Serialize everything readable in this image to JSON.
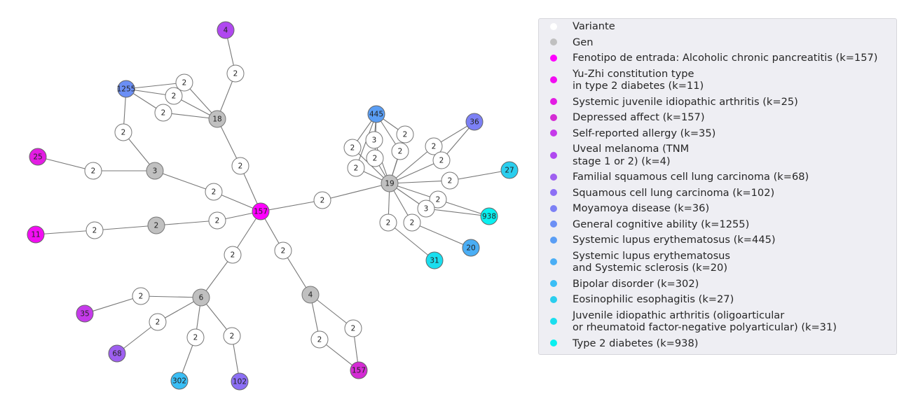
{
  "legend": [
    {
      "label": "Variante",
      "color": "#ffffff"
    },
    {
      "label": "Gen",
      "color": "#c0c0c0"
    },
    {
      "label": "Fenotipo de entrada: Alcoholic chronic pancreatitis (k=157)",
      "color": "#ff00ff"
    },
    {
      "label": "Yu-Zhi constitution type\nin type 2 diabetes (k=11)",
      "color": "#f20df2"
    },
    {
      "label": "Systemic juvenile idiopathic arthritis (k=25)",
      "color": "#e31ce3"
    },
    {
      "label": "Depressed affect (k=157)",
      "color": "#d42bd4"
    },
    {
      "label": "Self-reported allergy (k=35)",
      "color": "#c53aea"
    },
    {
      "label": "Uveal melanoma (TNM\nstage 1 or 2) (k=4)",
      "color": "#b048f0"
    },
    {
      "label": "Familial squamous cell lung carcinoma (k=68)",
      "color": "#9e5ff0"
    },
    {
      "label": "Squamous cell lung carcinoma (k=102)",
      "color": "#8c6ff5"
    },
    {
      "label": "Moyamoya disease (k=36)",
      "color": "#7c80f5"
    },
    {
      "label": "General cognitive ability (k=1255)",
      "color": "#6b8ff5"
    },
    {
      "label": "Systemic lupus erythematosus (k=445)",
      "color": "#5a9ef5"
    },
    {
      "label": "Systemic lupus erythematosus\nand Systemic sclerosis (k=20)",
      "color": "#4aaef5"
    },
    {
      "label": "Bipolar disorder (k=302)",
      "color": "#3abef5"
    },
    {
      "label": "Eosinophilic esophagitis (k=27)",
      "color": "#2aceee"
    },
    {
      "label": "Juvenile idiopathic arthritis (oligoarticular\nor rheumatoid factor-negative polyarticular) (k=31)",
      "color": "#1adeee"
    },
    {
      "label": "Type 2 diabetes (k=938)",
      "color": "#0af0f0"
    }
  ],
  "nodes": [
    {
      "id": "center",
      "label": "157",
      "kind": "phenotype",
      "color": "#ff00ff"
    },
    {
      "id": "p4",
      "label": "4",
      "kind": "phenotype",
      "color": "#b048f0"
    },
    {
      "id": "v_p4",
      "label": "2",
      "kind": "variant"
    },
    {
      "id": "g18",
      "label": "18",
      "kind": "gene"
    },
    {
      "id": "p1255",
      "label": "1255",
      "kind": "phenotype",
      "color": "#6b8ff5"
    },
    {
      "id": "v18a",
      "label": "2",
      "kind": "variant"
    },
    {
      "id": "v18b",
      "label": "2",
      "kind": "variant"
    },
    {
      "id": "v18c",
      "label": "2",
      "kind": "variant"
    },
    {
      "id": "v_1255",
      "label": "2",
      "kind": "variant"
    },
    {
      "id": "v_18c",
      "label": "2",
      "kind": "variant"
    },
    {
      "id": "g3",
      "label": "3",
      "kind": "gene"
    },
    {
      "id": "p25",
      "label": "25",
      "kind": "phenotype",
      "color": "#e31ce3"
    },
    {
      "id": "v_25",
      "label": "2",
      "kind": "variant"
    },
    {
      "id": "v_3c",
      "label": "2",
      "kind": "variant"
    },
    {
      "id": "g2",
      "label": "2",
      "kind": "gene"
    },
    {
      "id": "p11",
      "label": "11",
      "kind": "phenotype",
      "color": "#f20df2"
    },
    {
      "id": "v_11",
      "label": "2",
      "kind": "variant"
    },
    {
      "id": "v_2c",
      "label": "2",
      "kind": "variant"
    },
    {
      "id": "g6",
      "label": "6",
      "kind": "gene"
    },
    {
      "id": "v_6c",
      "label": "2",
      "kind": "variant"
    },
    {
      "id": "p35",
      "label": "35",
      "kind": "phenotype",
      "color": "#c53aea"
    },
    {
      "id": "v_35",
      "label": "2",
      "kind": "variant"
    },
    {
      "id": "p68",
      "label": "68",
      "kind": "phenotype",
      "color": "#9e5ff0"
    },
    {
      "id": "v_68",
      "label": "2",
      "kind": "variant"
    },
    {
      "id": "p302",
      "label": "302",
      "kind": "phenotype",
      "color": "#3abef5"
    },
    {
      "id": "v_302",
      "label": "2",
      "kind": "variant"
    },
    {
      "id": "p102",
      "label": "102",
      "kind": "phenotype",
      "color": "#8c6ff5"
    },
    {
      "id": "v_102",
      "label": "2",
      "kind": "variant"
    },
    {
      "id": "g4",
      "label": "4",
      "kind": "gene"
    },
    {
      "id": "v_4c",
      "label": "2",
      "kind": "variant"
    },
    {
      "id": "v_4a",
      "label": "2",
      "kind": "variant"
    },
    {
      "id": "v_4b",
      "label": "2",
      "kind": "variant"
    },
    {
      "id": "p157b",
      "label": "157",
      "kind": "phenotype",
      "color": "#d42bd4"
    },
    {
      "id": "g19",
      "label": "19",
      "kind": "gene"
    },
    {
      "id": "v_19c",
      "label": "2",
      "kind": "variant"
    },
    {
      "id": "p445",
      "label": "445",
      "kind": "phenotype",
      "color": "#5a9ef5"
    },
    {
      "id": "v445a",
      "label": "2",
      "kind": "variant"
    },
    {
      "id": "v445b",
      "label": "3",
      "kind": "variant"
    },
    {
      "id": "v445c",
      "label": "2",
      "kind": "variant"
    },
    {
      "id": "v445d",
      "label": "2",
      "kind": "variant"
    },
    {
      "id": "v445e",
      "label": "2",
      "kind": "variant"
    },
    {
      "id": "v445f",
      "label": "2",
      "kind": "variant"
    },
    {
      "id": "p36",
      "label": "36",
      "kind": "phenotype",
      "color": "#7c80f5"
    },
    {
      "id": "v36a",
      "label": "2",
      "kind": "variant"
    },
    {
      "id": "v36b",
      "label": "2",
      "kind": "variant"
    },
    {
      "id": "p27",
      "label": "27",
      "kind": "phenotype",
      "color": "#2aceee"
    },
    {
      "id": "v_27",
      "label": "2",
      "kind": "variant"
    },
    {
      "id": "p938",
      "label": "938",
      "kind": "phenotype",
      "color": "#0af0f0"
    },
    {
      "id": "v938a",
      "label": "2",
      "kind": "variant"
    },
    {
      "id": "v938b",
      "label": "3",
      "kind": "variant"
    },
    {
      "id": "p20",
      "label": "20",
      "kind": "phenotype",
      "color": "#4aaef5"
    },
    {
      "id": "v_20",
      "label": "2",
      "kind": "variant"
    },
    {
      "id": "p31",
      "label": "31",
      "kind": "phenotype",
      "color": "#1adeee"
    },
    {
      "id": "v_31",
      "label": "2",
      "kind": "variant"
    }
  ],
  "edges": [
    [
      "p4",
      "v_p4"
    ],
    [
      "v_p4",
      "g18"
    ],
    [
      "p1255",
      "v18a"
    ],
    [
      "p1255",
      "v18b"
    ],
    [
      "p1255",
      "v18c"
    ],
    [
      "p1255",
      "v_1255"
    ],
    [
      "v18a",
      "g18"
    ],
    [
      "v18b",
      "g18"
    ],
    [
      "v18c",
      "g18"
    ],
    [
      "g18",
      "v_18c"
    ],
    [
      "v_18c",
      "center"
    ],
    [
      "v_1255",
      "g3"
    ],
    [
      "p25",
      "v_25"
    ],
    [
      "v_25",
      "g3"
    ],
    [
      "g3",
      "v_3c"
    ],
    [
      "v_3c",
      "center"
    ],
    [
      "p11",
      "v_11"
    ],
    [
      "v_11",
      "g2"
    ],
    [
      "g2",
      "v_2c"
    ],
    [
      "v_2c",
      "center"
    ],
    [
      "center",
      "v_6c"
    ],
    [
      "v_6c",
      "g6"
    ],
    [
      "g6",
      "v_35"
    ],
    [
      "v_35",
      "p35"
    ],
    [
      "g6",
      "v_68"
    ],
    [
      "v_68",
      "p68"
    ],
    [
      "g6",
      "v_302"
    ],
    [
      "v_302",
      "p302"
    ],
    [
      "g6",
      "v_102"
    ],
    [
      "v_102",
      "p102"
    ],
    [
      "center",
      "v_4c"
    ],
    [
      "v_4c",
      "g4"
    ],
    [
      "g4",
      "v_4a"
    ],
    [
      "g4",
      "v_4b"
    ],
    [
      "v_4a",
      "p157b"
    ],
    [
      "v_4b",
      "p157b"
    ],
    [
      "center",
      "v_19c"
    ],
    [
      "v_19c",
      "g19"
    ],
    [
      "p445",
      "v445a"
    ],
    [
      "p445",
      "v445b"
    ],
    [
      "p445",
      "v445c"
    ],
    [
      "p445",
      "v445d"
    ],
    [
      "p445",
      "v445e"
    ],
    [
      "p445",
      "v445f"
    ],
    [
      "v445a",
      "g19"
    ],
    [
      "v445b",
      "g19"
    ],
    [
      "v445c",
      "g19"
    ],
    [
      "v445d",
      "g19"
    ],
    [
      "v445e",
      "g19"
    ],
    [
      "v445f",
      "g19"
    ],
    [
      "p36",
      "v36a"
    ],
    [
      "p36",
      "v36b"
    ],
    [
      "v36a",
      "g19"
    ],
    [
      "v36b",
      "g19"
    ],
    [
      "g19",
      "v_27"
    ],
    [
      "v_27",
      "p27"
    ],
    [
      "g19",
      "v938a"
    ],
    [
      "g19",
      "v938b"
    ],
    [
      "v938a",
      "p938"
    ],
    [
      "v938b",
      "p938"
    ],
    [
      "g19",
      "v_20"
    ],
    [
      "v_20",
      "p20"
    ],
    [
      "g19",
      "v_31"
    ],
    [
      "v_31",
      "p31"
    ]
  ]
}
